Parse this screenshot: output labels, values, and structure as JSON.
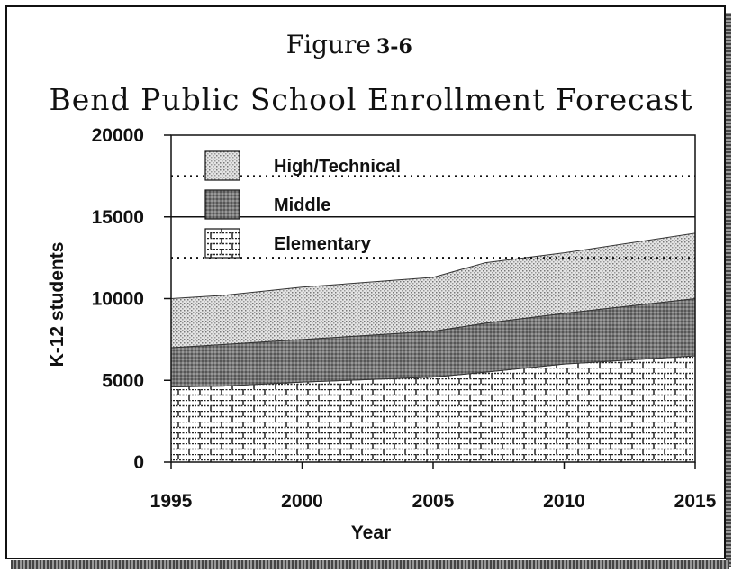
{
  "figure": {
    "label": "Figure",
    "number": "3-6"
  },
  "chart_data": {
    "type": "area",
    "stacked": true,
    "title": "Bend Public School Enrollment Forecast",
    "xlabel": "Year",
    "ylabel": "K-12 students",
    "xlim": [
      1995,
      2015
    ],
    "ylim": [
      0,
      20000
    ],
    "x_ticks": [
      1995,
      2000,
      2005,
      2010,
      2015
    ],
    "y_ticks": [
      0,
      5000,
      10000,
      15000,
      20000
    ],
    "x": [
      1995,
      1997,
      2000,
      2005,
      2007,
      2010,
      2015
    ],
    "series": [
      {
        "name": "Elementary",
        "values": [
          4600,
          4650,
          4900,
          5200,
          5500,
          6000,
          6500
        ],
        "pattern": "brick"
      },
      {
        "name": "Middle",
        "values": [
          2400,
          2550,
          2600,
          2800,
          3000,
          3100,
          3500
        ],
        "pattern": "dark-stipple"
      },
      {
        "name": "High/Technical",
        "values": [
          3000,
          3000,
          3200,
          3300,
          3700,
          3700,
          4000
        ],
        "pattern": "light-stipple"
      }
    ],
    "legend_position": "top-left",
    "reference_lines": [
      {
        "y": 17500,
        "style": "dotted"
      },
      {
        "y": 15000,
        "style": "solid"
      },
      {
        "y": 12500,
        "style": "dotted"
      }
    ]
  }
}
